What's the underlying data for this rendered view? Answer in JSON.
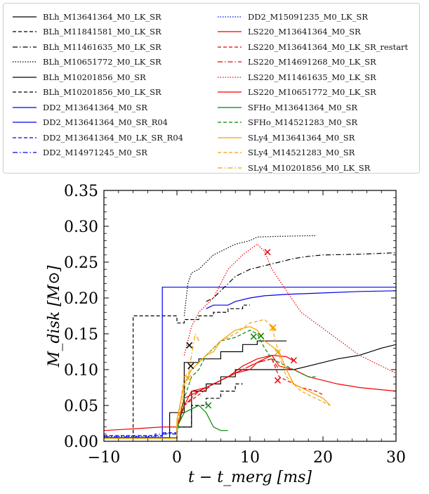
{
  "chart_data": {
    "type": "line",
    "xlabel": "t − t_merg [ms]",
    "ylabel": "M_disk [M⊙]",
    "xlim": [
      -10,
      30
    ],
    "ylim": [
      0,
      0.35
    ],
    "xticks": [
      "−10",
      "0",
      "10",
      "20",
      "30"
    ],
    "yticks": [
      "0.00",
      "0.05",
      "0.10",
      "0.15",
      "0.20",
      "0.25",
      "0.30",
      "0.35"
    ],
    "legend_position": "top",
    "legend_columns": 2,
    "series": [
      {
        "name": "BLh_M13641364_M0_LK_SR",
        "color": "#000000",
        "dash": "solid",
        "points": [
          [
            -10,
            0.005
          ],
          [
            -1,
            0.005
          ],
          [
            -1,
            0.04
          ],
          [
            1,
            0.04
          ],
          [
            1,
            0.11
          ],
          [
            3,
            0.11
          ],
          [
            3,
            0.115
          ],
          [
            6,
            0.115
          ],
          [
            6,
            0.125
          ],
          [
            9,
            0.125
          ],
          [
            9,
            0.135
          ],
          [
            11,
            0.135
          ],
          [
            11,
            0.14
          ],
          [
            15,
            0.14
          ]
        ],
        "marker": [
          1.7,
          0.134
        ]
      },
      {
        "name": "BLh_M11841581_M0_LK_SR",
        "color": "#000000",
        "dash": "dashed",
        "points": [
          [
            -10,
            0.005
          ],
          [
            -6,
            0.005
          ],
          [
            -6,
            0.175
          ],
          [
            0,
            0.175
          ],
          [
            0,
            0.165
          ],
          [
            1,
            0.165
          ],
          [
            1,
            0.17
          ],
          [
            3,
            0.17
          ],
          [
            3,
            0.175
          ],
          [
            5,
            0.175
          ],
          [
            5,
            0.18
          ],
          [
            7,
            0.18
          ],
          [
            7,
            0.185
          ],
          [
            9,
            0.185
          ],
          [
            9,
            0.19
          ],
          [
            10,
            0.19
          ]
        ]
      },
      {
        "name": "BLh_M11461635_M0_LK_SR",
        "color": "#000000",
        "dash": "dashdot",
        "points": [
          [
            4,
            0.195
          ],
          [
            5,
            0.2
          ],
          [
            6,
            0.21
          ],
          [
            7,
            0.22
          ],
          [
            8,
            0.23
          ],
          [
            9,
            0.235
          ],
          [
            10,
            0.24
          ],
          [
            12,
            0.245
          ],
          [
            14,
            0.25
          ],
          [
            16,
            0.255
          ],
          [
            18,
            0.258
          ],
          [
            20,
            0.26
          ],
          [
            25,
            0.261
          ],
          [
            30,
            0.263
          ]
        ]
      },
      {
        "name": "BLh_M10651772_M0_LK_SR",
        "color": "#000000",
        "dash": "dotted",
        "points": [
          [
            1,
            0.175
          ],
          [
            1.5,
            0.22
          ],
          [
            2,
            0.235
          ],
          [
            3,
            0.24
          ],
          [
            4,
            0.25
          ],
          [
            5,
            0.26
          ],
          [
            6,
            0.265
          ],
          [
            7,
            0.27
          ],
          [
            8,
            0.275
          ],
          [
            10,
            0.28
          ],
          [
            11,
            0.285
          ],
          [
            14,
            0.286
          ],
          [
            19,
            0.287
          ]
        ]
      },
      {
        "name": "BLh_M10201856_M0_SR",
        "color": "#000000",
        "dash": "solid",
        "points": [
          [
            0,
            0.005
          ],
          [
            0,
            0.02
          ],
          [
            2,
            0.02
          ],
          [
            2,
            0.07
          ],
          [
            4,
            0.07
          ],
          [
            4,
            0.08
          ],
          [
            6,
            0.08
          ],
          [
            6,
            0.09
          ],
          [
            8,
            0.09
          ],
          [
            8,
            0.1
          ],
          [
            16,
            0.1
          ],
          [
            18,
            0.105
          ],
          [
            20,
            0.11
          ],
          [
            22,
            0.115
          ],
          [
            25,
            0.12
          ],
          [
            28,
            0.13
          ],
          [
            30,
            0.135
          ]
        ]
      },
      {
        "name": "BLh_M10201856_M0_LK_SR",
        "color": "#000000",
        "dash": "dashed",
        "points": [
          [
            0,
            0.005
          ],
          [
            0,
            0.02
          ],
          [
            2,
            0.02
          ],
          [
            2,
            0.05
          ],
          [
            4,
            0.05
          ],
          [
            4,
            0.06
          ],
          [
            6,
            0.06
          ],
          [
            6,
            0.07
          ],
          [
            8,
            0.07
          ],
          [
            8,
            0.08
          ],
          [
            9,
            0.08
          ]
        ]
      },
      {
        "name": "DD2_M13641364_M0_SR",
        "color": "#0000ee",
        "dash": "solid",
        "points": [
          [
            -10,
            0.005
          ],
          [
            -2,
            0.005
          ],
          [
            -2,
            0.215
          ],
          [
            30,
            0.215
          ]
        ]
      },
      {
        "name": "DD2_M13641364_M0_SR_R04",
        "color": "#0000ee",
        "dash": "solid",
        "points": [
          [
            4,
            0.185
          ],
          [
            5,
            0.19
          ],
          [
            7,
            0.19
          ],
          [
            8,
            0.195
          ],
          [
            10,
            0.2
          ],
          [
            12,
            0.203
          ],
          [
            15,
            0.205
          ],
          [
            20,
            0.207
          ],
          [
            25,
            0.209
          ],
          [
            30,
            0.21
          ]
        ]
      },
      {
        "name": "DD2_M13641364_M0_LK_SR_R04",
        "color": "#0000ee",
        "dash": "dashed",
        "points": [
          [
            -10,
            0.008
          ],
          [
            -2,
            0.008
          ],
          [
            -2,
            0.012
          ],
          [
            0,
            0.012
          ]
        ]
      },
      {
        "name": "DD2_M14971245_M0_SR",
        "color": "#0000ee",
        "dash": "dashdot",
        "points": [
          [
            -10,
            0.006
          ],
          [
            -3,
            0.006
          ],
          [
            -3,
            0.01
          ],
          [
            0,
            0.01
          ]
        ]
      },
      {
        "name": "DD2_M15091235_M0_LK_SR",
        "color": "#0000ee",
        "dash": "dotted",
        "points": [
          [
            -10,
            0.007
          ],
          [
            -2,
            0.007
          ],
          [
            -2,
            0.011
          ],
          [
            0,
            0.011
          ]
        ]
      },
      {
        "name": "LS220_M13641364_M0_SR",
        "color": "#ee0000",
        "dash": "solid",
        "points": [
          [
            -10,
            0.015
          ],
          [
            -5,
            0.018
          ],
          [
            -2,
            0.02
          ],
          [
            0,
            0.02
          ],
          [
            1,
            0.05
          ],
          [
            2,
            0.07
          ],
          [
            4,
            0.075
          ],
          [
            6,
            0.085
          ],
          [
            8,
            0.095
          ],
          [
            10,
            0.1
          ],
          [
            11,
            0.11
          ],
          [
            12,
            0.115
          ],
          [
            13,
            0.12
          ],
          [
            14,
            0.105
          ],
          [
            16,
            0.1
          ],
          [
            18,
            0.09
          ],
          [
            20,
            0.085
          ],
          [
            22,
            0.08
          ],
          [
            25,
            0.075
          ],
          [
            28,
            0.072
          ],
          [
            30,
            0.07
          ]
        ]
      },
      {
        "name": "LS220_M13641364_M0_LK_SR_restart",
        "color": "#ee0000",
        "dash": "dashed",
        "points": [
          [
            0,
            0.02
          ],
          [
            1,
            0.05
          ],
          [
            3,
            0.065
          ],
          [
            5,
            0.08
          ],
          [
            7,
            0.09
          ],
          [
            9,
            0.1
          ],
          [
            11,
            0.11
          ],
          [
            13,
            0.115
          ],
          [
            14,
            0.09
          ],
          [
            15,
            0.085
          ],
          [
            17,
            0.075
          ],
          [
            19,
            0.07
          ],
          [
            20,
            0.065
          ]
        ]
      },
      {
        "name": "LS220_M14691268_M0_LK_SR",
        "color": "#ee0000",
        "dash": "dashdot",
        "points": [
          [
            0,
            0.015
          ],
          [
            1,
            0.05
          ],
          [
            3,
            0.07
          ],
          [
            5,
            0.08
          ],
          [
            7,
            0.09
          ],
          [
            9,
            0.1
          ],
          [
            11,
            0.11
          ],
          [
            13,
            0.115
          ],
          [
            14,
            0.1
          ]
        ]
      },
      {
        "name": "LS220_M11461635_M0_LK_SR",
        "color": "#ee0000",
        "dash": "dotted",
        "points": [
          [
            1,
            0.12
          ],
          [
            2,
            0.16
          ],
          [
            3,
            0.18
          ],
          [
            5,
            0.2
          ],
          [
            7,
            0.24
          ],
          [
            9,
            0.26
          ],
          [
            11,
            0.275
          ],
          [
            12,
            0.265
          ],
          [
            13,
            0.24
          ],
          [
            15,
            0.21
          ],
          [
            17,
            0.18
          ],
          [
            19,
            0.165
          ],
          [
            21,
            0.15
          ],
          [
            23,
            0.135
          ],
          [
            25,
            0.12
          ],
          [
            27,
            0.11
          ],
          [
            29,
            0.1
          ],
          [
            30,
            0.095
          ]
        ]
      },
      {
        "name": "LS220_M10651772_M0_LK_SR",
        "color": "#ee0000",
        "dash": "solid",
        "points": [
          [
            0,
            0.02
          ],
          [
            1,
            0.06
          ],
          [
            3,
            0.07
          ],
          [
            5,
            0.08
          ],
          [
            7,
            0.09
          ],
          [
            9,
            0.105
          ],
          [
            11,
            0.115
          ],
          [
            13,
            0.12
          ],
          [
            15,
            0.118
          ],
          [
            16,
            0.112
          ]
        ],
        "marker": [
          16,
          0.113
        ]
      },
      {
        "name": "SFHo_M13641364_M0_SR",
        "color": "#008800",
        "dash": "solid",
        "points": [
          [
            -10,
            0.005
          ],
          [
            0,
            0.005
          ],
          [
            0,
            0.02
          ],
          [
            1,
            0.04
          ],
          [
            2,
            0.045
          ],
          [
            3,
            0.05
          ],
          [
            4,
            0.04
          ],
          [
            5,
            0.02
          ],
          [
            6,
            0.015
          ],
          [
            7,
            0.015
          ]
        ],
        "marker": [
          4.3,
          0.05
        ]
      },
      {
        "name": "SFHo_M14521283_M0_SR",
        "color": "#008800",
        "dash": "dashed",
        "points": [
          [
            0,
            0.01
          ],
          [
            1,
            0.06
          ],
          [
            2,
            0.09
          ],
          [
            3,
            0.1
          ],
          [
            4,
            0.12
          ],
          [
            5,
            0.13
          ],
          [
            6,
            0.14
          ],
          [
            8,
            0.145
          ],
          [
            10,
            0.155
          ],
          [
            11,
            0.15
          ],
          [
            12,
            0.13
          ],
          [
            13,
            0.115
          ],
          [
            14,
            0.11
          ],
          [
            16,
            0.1
          ],
          [
            18,
            0.09
          ],
          [
            19,
            0.09
          ]
        ],
        "marker": [
          10.5,
          0.146
        ]
      },
      {
        "name": "SLy4_M13641364_M0_SR",
        "color": "#f5a000",
        "dash": "solid",
        "points": [
          [
            -10,
            0.004
          ],
          [
            0,
            0.004
          ],
          [
            0,
            0.03
          ],
          [
            1,
            0.08
          ],
          [
            2,
            0.1
          ],
          [
            3,
            0.11
          ],
          [
            4,
            0.12
          ],
          [
            5,
            0.125
          ],
          [
            6,
            0.14
          ],
          [
            8,
            0.155
          ],
          [
            10,
            0.16
          ],
          [
            11,
            0.155
          ],
          [
            12,
            0.14
          ],
          [
            14,
            0.125
          ],
          [
            15,
            0.1
          ],
          [
            16,
            0.08
          ],
          [
            18,
            0.07
          ],
          [
            20,
            0.06
          ],
          [
            21,
            0.05
          ]
        ],
        "marker": [
          13.1,
          0.158
        ]
      },
      {
        "name": "SLy4_M14521283_M0_SR",
        "color": "#f5a000",
        "dash": "dashed",
        "points": [
          [
            0,
            0.02
          ],
          [
            1,
            0.09
          ],
          [
            2,
            0.1
          ],
          [
            4,
            0.12
          ],
          [
            6,
            0.14
          ],
          [
            8,
            0.15
          ],
          [
            10,
            0.165
          ],
          [
            12,
            0.17
          ],
          [
            13,
            0.16
          ],
          [
            14,
            0.12
          ],
          [
            15,
            0.09
          ],
          [
            17,
            0.07
          ],
          [
            19,
            0.06
          ],
          [
            21,
            0.05
          ]
        ],
        "marker": [
          13.8,
          0.124
        ]
      },
      {
        "name": "SLy4_M10201856_M0_LK_SR",
        "color": "#f5a000",
        "dash": "dashdot",
        "points": [
          [
            0,
            0.015
          ],
          [
            1,
            0.07
          ],
          [
            1.5,
            0.09
          ],
          [
            2,
            0.12
          ],
          [
            2.5,
            0.15
          ],
          [
            3,
            0.14
          ]
        ],
        "marker": [
          1.5,
          0.088
        ]
      }
    ],
    "extra_markers": [
      {
        "color": "#000000",
        "x": 1.9,
        "y": 0.105
      },
      {
        "color": "#ee0000",
        "x": 12.4,
        "y": 0.264
      },
      {
        "color": "#ee0000",
        "x": 13.8,
        "y": 0.085
      },
      {
        "color": "#008800",
        "x": 11.5,
        "y": 0.147
      },
      {
        "color": "#f5a000",
        "x": 13.2,
        "y": 0.159
      }
    ]
  }
}
